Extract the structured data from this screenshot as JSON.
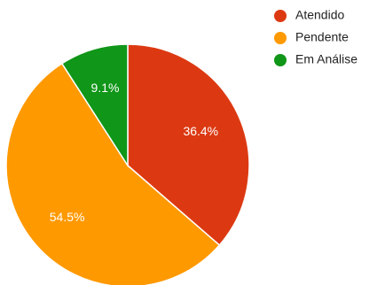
{
  "chart_data": {
    "type": "pie",
    "categories": [
      "Atendido",
      "Pendente",
      "Em Análise"
    ],
    "values": [
      36.4,
      54.5,
      9.1
    ],
    "labels": [
      "36.4%",
      "54.5%",
      "9.1%"
    ],
    "colors": [
      "#DC3912",
      "#FF9900",
      "#109618"
    ],
    "legend_position": "top-right"
  }
}
